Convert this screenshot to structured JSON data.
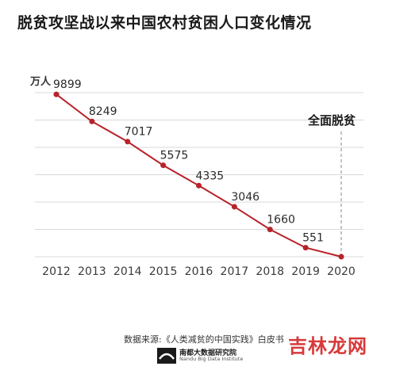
{
  "title": "脱贫攻坚战以来中国农村贫困人口变化情况",
  "chart_data": {
    "type": "line",
    "unit_label": "万人",
    "categories": [
      "2012",
      "2013",
      "2014",
      "2015",
      "2016",
      "2017",
      "2018",
      "2019",
      "2020"
    ],
    "values": [
      9899,
      8249,
      7017,
      5575,
      4335,
      3046,
      1660,
      551,
      0
    ],
    "data_labels": [
      "9899",
      "8249",
      "7017",
      "5575",
      "4335",
      "3046",
      "1660",
      "551",
      ""
    ],
    "annotation": "全面脱贫",
    "ylim": [
      0,
      10000
    ],
    "grid": true,
    "line_color": "#b8232a",
    "grid_color": "#d9d9d9"
  },
  "footer": {
    "source": "数据来源:《人类减贫的中国实践》白皮书",
    "logo_cn": "南都大数据研究院",
    "logo_en": "Nandu Big Data Institute"
  },
  "watermark": "吉林龙网"
}
